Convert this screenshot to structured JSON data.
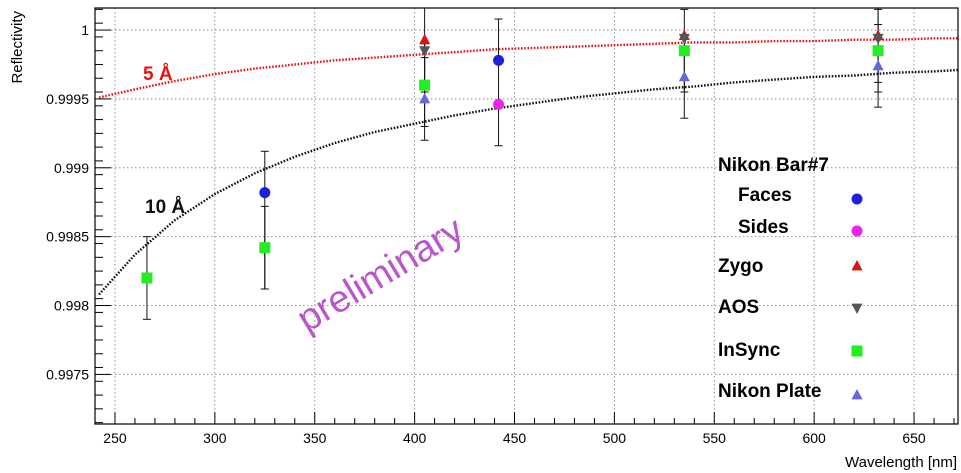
{
  "chart_data": {
    "type": "scatter",
    "title": "",
    "xlabel": "Wavelength [nm]",
    "ylabel": "Reflectivity",
    "xlim": [
      240,
      672
    ],
    "ylim": [
      0.99714,
      1.00016
    ],
    "grid": true,
    "x_ticks": [
      250,
      300,
      350,
      400,
      450,
      500,
      550,
      600,
      650
    ],
    "x_tick_labels": [
      "250",
      "300",
      "350",
      "400",
      "450",
      "500",
      "550",
      "600",
      "650"
    ],
    "y_ticks": [
      0.9975,
      0.998,
      0.9985,
      0.999,
      0.9995,
      1.0
    ],
    "y_tick_labels": [
      "0.9975",
      "0.998",
      "0.9985",
      "0.999",
      "0.9995",
      "1"
    ],
    "legend_position": "right",
    "legend_header": "Nikon Bar#7",
    "series": [
      {
        "name": "Faces",
        "marker": "circle",
        "color": "#1f1fe0",
        "points": [
          {
            "x": 325,
            "y": 0.99882,
            "err_lo": 0.99812,
            "err_hi": 0.99912
          },
          {
            "x": 442,
            "y": 0.99978,
            "err_lo": 0.99916,
            "err_hi": 1.00008
          }
        ]
      },
      {
        "name": "Sides",
        "marker": "circle",
        "color": "#ee22ee",
        "points": [
          {
            "x": 442,
            "y": 0.99946
          }
        ]
      },
      {
        "name": "Zygo",
        "marker": "triangle-up",
        "color": "#dd1111",
        "points": [
          {
            "x": 405,
            "y": 0.99993
          },
          {
            "x": 535,
            "y": 0.99996
          },
          {
            "x": 632,
            "y": 0.99996
          }
        ]
      },
      {
        "name": "AOS",
        "marker": "triangle-down",
        "color": "#555555",
        "points": [
          {
            "x": 405,
            "y": 0.99985,
            "err_lo": 0.99955,
            "err_hi": 1.00016
          },
          {
            "x": 535,
            "y": 0.99994
          },
          {
            "x": 632,
            "y": 0.99994,
            "err_lo": 0.99962,
            "err_hi": 1.00016
          }
        ]
      },
      {
        "name": "InSync",
        "marker": "square",
        "color": "#22ee22",
        "points": [
          {
            "x": 266,
            "y": 0.9982,
            "err_lo": 0.9979,
            "err_hi": 0.9985
          },
          {
            "x": 325,
            "y": 0.99842,
            "err_lo": 0.99812,
            "err_hi": 0.99872
          },
          {
            "x": 405,
            "y": 0.9996,
            "err_lo": 0.9993,
            "err_hi": 0.9999
          },
          {
            "x": 535,
            "y": 0.99985,
            "err_lo": 0.99955,
            "err_hi": 1.00015
          },
          {
            "x": 632,
            "y": 0.99985,
            "err_lo": 0.99955,
            "err_hi": 1.00015
          }
        ]
      },
      {
        "name": "Nikon Plate",
        "marker": "triangle-up",
        "color": "#6666dd",
        "points": [
          {
            "x": 405,
            "y": 0.9995,
            "err_lo": 0.9992,
            "err_hi": 0.9998
          },
          {
            "x": 535,
            "y": 0.99966,
            "err_lo": 0.99936,
            "err_hi": 0.99996
          },
          {
            "x": 632,
            "y": 0.99974,
            "err_lo": 0.99944,
            "err_hi": 1.00004
          }
        ]
      }
    ],
    "curves": [
      {
        "label": "5 Å",
        "roughness_angstrom": 5,
        "color": "#ee1111",
        "x": [
          242,
          260,
          280,
          300,
          320,
          340,
          360,
          380,
          400,
          420,
          440,
          460,
          480,
          500,
          520,
          540,
          560,
          580,
          600,
          620,
          640,
          660,
          672
        ],
        "y": [
          0.99951,
          0.99957,
          0.99963,
          0.99968,
          0.99972,
          0.99975,
          0.99978,
          0.9998,
          0.99982,
          0.99984,
          0.99986,
          0.99987,
          0.99988,
          0.99989,
          0.9999,
          0.99991,
          0.99991,
          0.99992,
          0.99992,
          0.99993,
          0.99993,
          0.99994,
          0.99994
        ]
      },
      {
        "label": "10 Å",
        "roughness_angstrom": 10,
        "color": "#111111",
        "x": [
          242,
          260,
          280,
          300,
          320,
          340,
          360,
          380,
          400,
          420,
          440,
          460,
          480,
          500,
          520,
          540,
          560,
          580,
          600,
          620,
          640,
          660,
          672
        ],
        "y": [
          0.99808,
          0.99837,
          0.99862,
          0.99881,
          0.99896,
          0.99908,
          0.99918,
          0.99926,
          0.99932,
          0.99938,
          0.99943,
          0.99947,
          0.99951,
          0.99954,
          0.99957,
          0.99959,
          0.99962,
          0.99964,
          0.99966,
          0.99967,
          0.99969,
          0.9997,
          0.99971
        ]
      }
    ],
    "annotation": "preliminary"
  }
}
